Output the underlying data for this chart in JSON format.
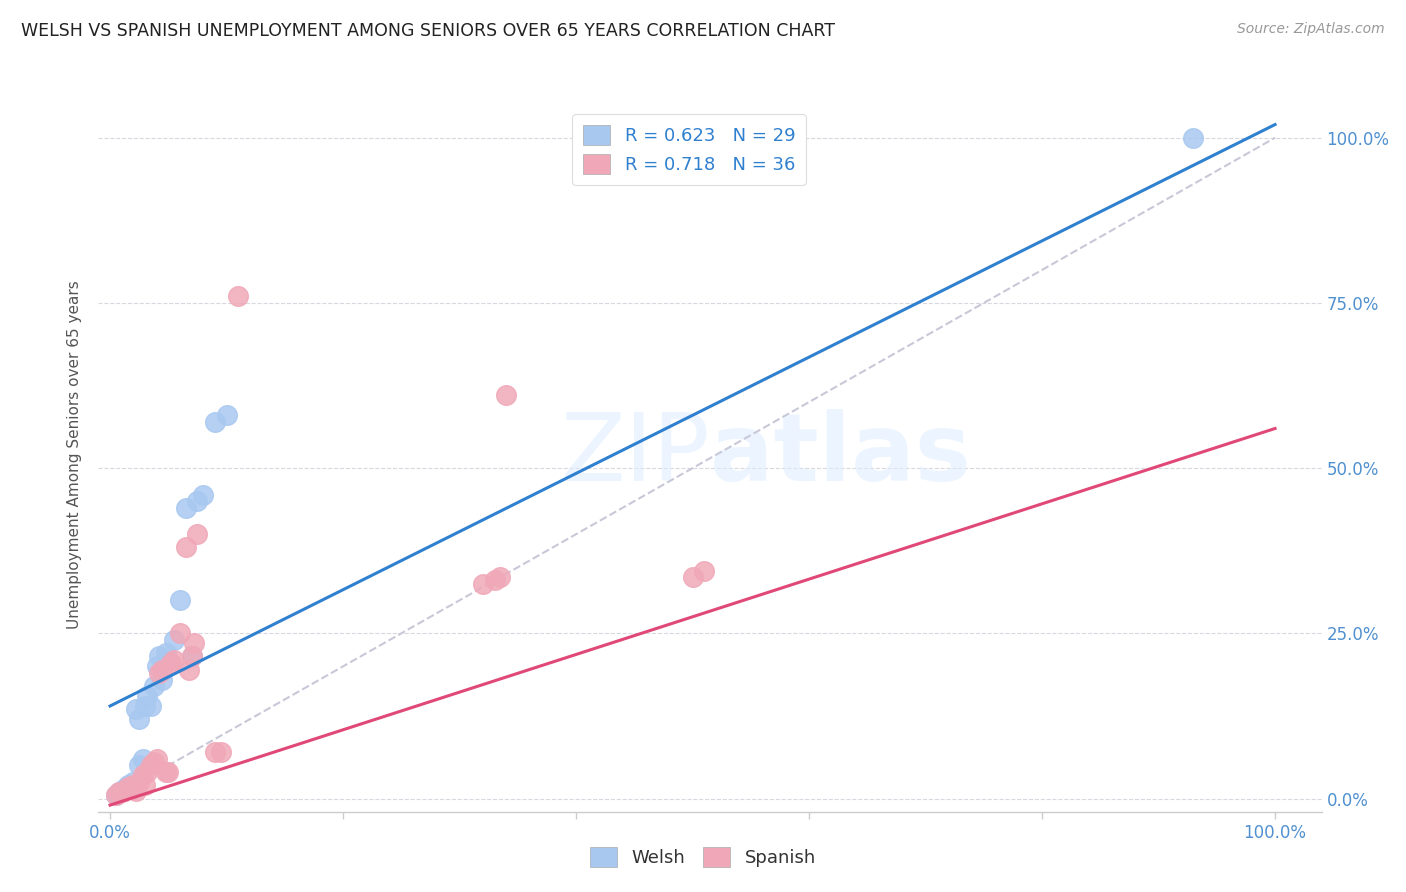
{
  "title": "WELSH VS SPANISH UNEMPLOYMENT AMONG SENIORS OVER 65 YEARS CORRELATION CHART",
  "source": "Source: ZipAtlas.com",
  "ylabel": "Unemployment Among Seniors over 65 years",
  "ytick_labels": [
    "0.0%",
    "25.0%",
    "50.0%",
    "75.0%",
    "100.0%"
  ],
  "ytick_vals": [
    0.0,
    0.25,
    0.5,
    0.75,
    1.0
  ],
  "xtick_vals": [
    0.0,
    0.2,
    0.4,
    0.6,
    0.8,
    1.0
  ],
  "watermark": "ZIPatlas",
  "welsh_R": 0.623,
  "welsh_N": 29,
  "spanish_R": 0.718,
  "spanish_N": 36,
  "welsh_color": "#a8c8f0",
  "spanish_color": "#f0a8b8",
  "welsh_line_color": "#3080d0",
  "spanish_line_color": "#e04878",
  "diagonal_color": "#c8c8d8",
  "bg_color": "#ffffff",
  "tick_color": "#5090d0",
  "legend_text_color": "#3080d0",
  "welsh_line_x0": 0.0,
  "welsh_line_y0": 0.14,
  "welsh_line_x1": 1.0,
  "welsh_line_y1": 1.02,
  "spanish_line_x0": 0.0,
  "spanish_line_y0": -0.01,
  "spanish_line_x1": 1.0,
  "spanish_line_y1": 0.56,
  "welsh_points_x": [
    0.005,
    0.008,
    0.01,
    0.012,
    0.015,
    0.018,
    0.02,
    0.022,
    0.025,
    0.025,
    0.028,
    0.03,
    0.032,
    0.035,
    0.038,
    0.04,
    0.042,
    0.045,
    0.048,
    0.05,
    0.055,
    0.06,
    0.065,
    0.07,
    0.075,
    0.08,
    0.09,
    0.1,
    0.93
  ],
  "welsh_points_y": [
    0.005,
    0.01,
    0.012,
    0.015,
    0.02,
    0.018,
    0.025,
    0.135,
    0.05,
    0.12,
    0.06,
    0.14,
    0.155,
    0.14,
    0.17,
    0.2,
    0.215,
    0.18,
    0.22,
    0.21,
    0.24,
    0.3,
    0.44,
    0.215,
    0.45,
    0.46,
    0.57,
    0.58,
    1.0
  ],
  "spanish_points_x": [
    0.005,
    0.008,
    0.01,
    0.012,
    0.015,
    0.018,
    0.02,
    0.022,
    0.025,
    0.028,
    0.03,
    0.032,
    0.035,
    0.038,
    0.04,
    0.042,
    0.045,
    0.048,
    0.05,
    0.052,
    0.055,
    0.06,
    0.065,
    0.068,
    0.07,
    0.072,
    0.075,
    0.09,
    0.095,
    0.11,
    0.32,
    0.33,
    0.335,
    0.34,
    0.5,
    0.51
  ],
  "spanish_points_y": [
    0.005,
    0.01,
    0.01,
    0.012,
    0.018,
    0.015,
    0.02,
    0.012,
    0.025,
    0.035,
    0.02,
    0.04,
    0.05,
    0.055,
    0.06,
    0.19,
    0.195,
    0.04,
    0.04,
    0.205,
    0.21,
    0.25,
    0.38,
    0.195,
    0.215,
    0.235,
    0.4,
    0.07,
    0.07,
    0.76,
    0.325,
    0.33,
    0.335,
    0.61,
    0.335,
    0.345
  ]
}
